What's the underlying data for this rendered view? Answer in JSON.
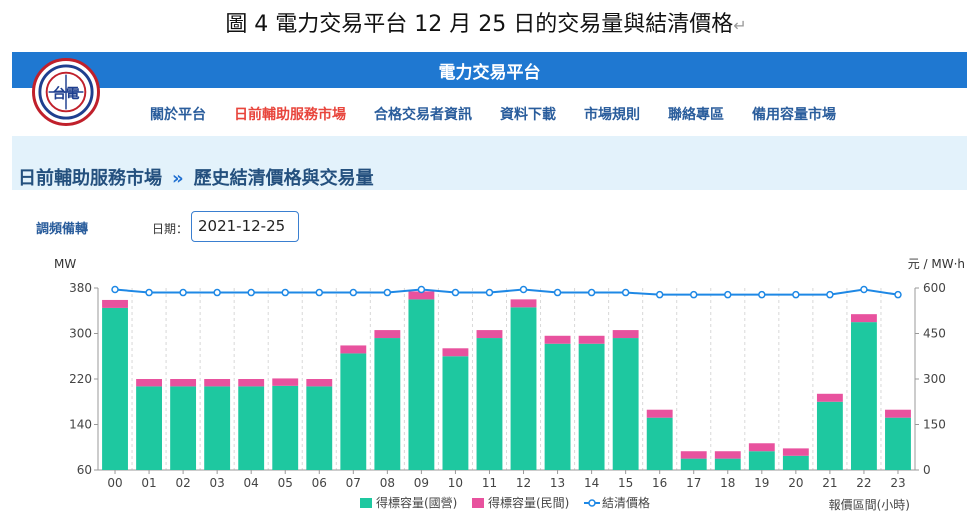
{
  "caption": {
    "text": "圖 4 電力交易平台 12 月 25 日的交易量與結清價格",
    "mark": "↵"
  },
  "header": {
    "title": "電力交易平台",
    "logo_text": "台電"
  },
  "nav": [
    {
      "label": "關於平台",
      "active": false
    },
    {
      "label": "日前輔助服務市場",
      "active": true
    },
    {
      "label": "合格交易者資訊",
      "active": false
    },
    {
      "label": "資料下載",
      "active": false
    },
    {
      "label": "市場規則",
      "active": false
    },
    {
      "label": "聯絡專區",
      "active": false
    },
    {
      "label": "備用容量市場",
      "active": false
    }
  ],
  "breadcrumb": {
    "section": "日前輔助服務市場",
    "separator": "»",
    "page": "歷史結清價格與交易量"
  },
  "filters": {
    "service_label": "調頻備轉",
    "date_label": "日期：",
    "date_value": "2021-12-25"
  },
  "colors": {
    "state": "#1ec8a0",
    "private": "#e8529e",
    "price": "#1e88e5",
    "nav_active": "#e8453c",
    "topbar": "#1f78d1"
  },
  "chart_data": {
    "type": "bar",
    "ylabel_left": "MW",
    "ylabel_right": "元 / MW·h",
    "xlabel": "報價區間(小時)",
    "categories": [
      "00",
      "01",
      "02",
      "03",
      "04",
      "05",
      "06",
      "07",
      "08",
      "09",
      "10",
      "11",
      "12",
      "13",
      "14",
      "15",
      "16",
      "17",
      "18",
      "19",
      "20",
      "21",
      "22",
      "23"
    ],
    "ylim_left": [
      60,
      380
    ],
    "yticks_left": [
      60,
      140,
      220,
      300,
      380
    ],
    "ylim_right": [
      0,
      600
    ],
    "yticks_right": [
      0,
      150,
      300,
      450,
      600
    ],
    "series": [
      {
        "name": "得標容量(國營)",
        "type": "bar",
        "axis": "left",
        "values": [
          345,
          207,
          207,
          207,
          207,
          208,
          207,
          265,
          292,
          360,
          260,
          292,
          346,
          282,
          282,
          292,
          152,
          80,
          80,
          93,
          85,
          180,
          320,
          152
        ]
      },
      {
        "name": "得標容量(民間)",
        "type": "bar",
        "axis": "left",
        "values": [
          14,
          13,
          13,
          13,
          13,
          13,
          13,
          14,
          14,
          14,
          14,
          14,
          14,
          14,
          14,
          14,
          14,
          13,
          13,
          14,
          13,
          14,
          14,
          14
        ]
      },
      {
        "name": "結清價格",
        "type": "line",
        "axis": "right",
        "values": [
          595,
          585,
          585,
          585,
          585,
          585,
          585,
          585,
          585,
          595,
          585,
          585,
          595,
          585,
          585,
          585,
          578,
          578,
          578,
          578,
          578,
          578,
          595,
          578
        ]
      }
    ],
    "legend_position": "bottom-center",
    "grid": "vertical-dashed"
  }
}
